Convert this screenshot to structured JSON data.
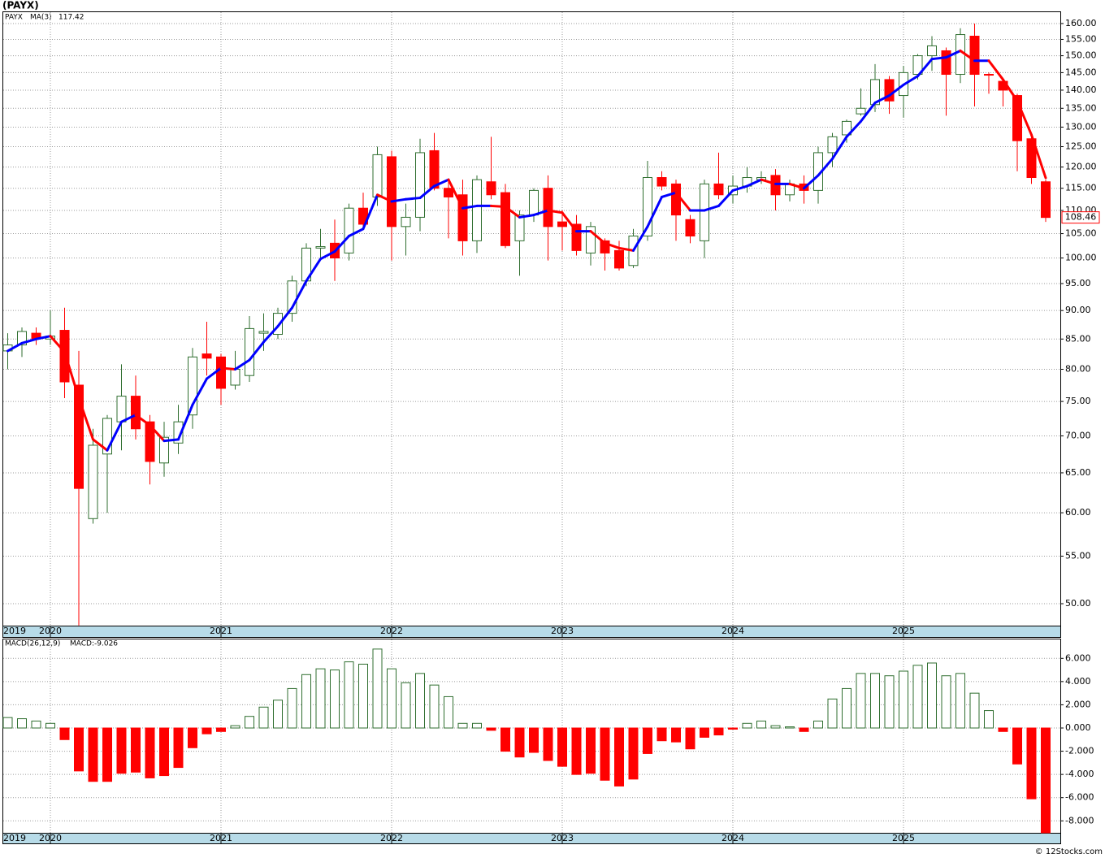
{
  "chart_data": [
    {
      "type": "candlestick",
      "title": "(PAYX)",
      "symbol": "PAYX",
      "log": true,
      "grid": true,
      "up_color": "#2f6e2f",
      "down_color": "#ff0000",
      "categories": [
        "2019",
        null,
        null,
        "2020",
        null,
        null,
        null,
        null,
        null,
        null,
        null,
        null,
        null,
        null,
        null,
        "2021",
        null,
        null,
        null,
        null,
        null,
        null,
        null,
        null,
        null,
        null,
        null,
        "2022",
        null,
        null,
        null,
        null,
        null,
        null,
        null,
        null,
        null,
        null,
        null,
        "2023",
        null,
        null,
        null,
        null,
        null,
        null,
        null,
        null,
        null,
        null,
        null,
        "2024",
        null,
        null,
        null,
        null,
        null,
        null,
        null,
        null,
        null,
        null,
        null,
        "2025",
        null,
        null,
        null,
        null,
        null,
        null,
        null,
        null,
        null,
        null
      ],
      "open": [
        83,
        84,
        86,
        85,
        86.5,
        77.5,
        59.3,
        67.5,
        72,
        75.8,
        72,
        66.3,
        69,
        73,
        82.5,
        82,
        77.5,
        79,
        86,
        85.8,
        89.5,
        95.5,
        102,
        103,
        101,
        110.5,
        113,
        122.5,
        106.5,
        108.5,
        124,
        115,
        113.5,
        103.5,
        116.5,
        114,
        103.5,
        109,
        115,
        107.5,
        107,
        101,
        103.5,
        101.5,
        98.5,
        104.5,
        117.5,
        116,
        108,
        103.5,
        116,
        113.5,
        115.5,
        117,
        118,
        113.5,
        116,
        114.5,
        123.5,
        128,
        133.5,
        136,
        143,
        138.5,
        144.5,
        150,
        151.5,
        144.5,
        156,
        144.5,
        142.5,
        138.5,
        127,
        116.5
      ],
      "high": [
        86,
        87,
        87,
        90,
        90.5,
        83,
        71,
        73,
        80.8,
        79,
        73,
        72,
        74.5,
        83.5,
        88,
        82.5,
        83,
        89,
        89.5,
        90.5,
        96.5,
        103,
        106,
        108,
        111.5,
        114,
        125,
        124,
        111.5,
        127,
        128.5,
        116.5,
        117,
        118,
        127.5,
        116,
        110,
        115,
        118,
        110,
        109,
        107.5,
        104,
        103.5,
        106,
        121.5,
        119,
        117,
        109,
        117,
        123.5,
        118,
        120,
        119,
        119.5,
        117,
        118,
        125,
        128.5,
        132,
        140.5,
        147.5,
        144,
        147,
        150.5,
        156,
        152.5,
        158.5,
        160,
        145,
        143.5,
        139,
        128.5,
        117
      ],
      "low": [
        80,
        82,
        84,
        84,
        75.5,
        47.87,
        58.7,
        60,
        68,
        69.5,
        63.5,
        64.5,
        67.5,
        71,
        79,
        74.5,
        76.8,
        78,
        83,
        85,
        88,
        94.5,
        100,
        95.5,
        99.5,
        106,
        111,
        99.5,
        100.5,
        105.5,
        114.5,
        104,
        100.5,
        101,
        112.5,
        102,
        96.5,
        107.5,
        99.5,
        101.5,
        100.5,
        98.5,
        97.5,
        97.5,
        98,
        103.5,
        114.5,
        103.5,
        103,
        100,
        112.5,
        111.5,
        114,
        116,
        110,
        112,
        111.5,
        111.5,
        120,
        126,
        133,
        134,
        133.5,
        132.5,
        143,
        145.5,
        133,
        142,
        135.5,
        139,
        135.5,
        119,
        116,
        107.5
      ],
      "close": [
        84,
        86.3,
        85,
        85.5,
        78,
        63,
        68.7,
        72.5,
        75.8,
        71,
        66.5,
        69.8,
        72,
        82,
        81.8,
        77,
        80,
        86.8,
        86.3,
        89.5,
        95.5,
        102,
        102.3,
        100,
        110.5,
        107,
        123,
        106.5,
        108.5,
        123.5,
        115,
        113,
        103.5,
        117,
        113.5,
        102.5,
        109,
        114.5,
        106.5,
        106.5,
        101.5,
        106.5,
        101,
        98,
        104.5,
        117.5,
        115.5,
        109,
        104.5,
        116,
        113.5,
        115.5,
        117.5,
        117.5,
        113.5,
        116,
        114.5,
        123.5,
        127.5,
        131.5,
        135,
        143,
        137,
        145,
        150,
        153,
        144.5,
        156.5,
        144.5,
        144.3,
        140,
        126.5,
        117.5,
        108.46
      ],
      "ma": {
        "name": "MA(3)",
        "up_color": "#0000ff",
        "down_color": "#ff0000",
        "values": [
          83,
          84.3,
          85,
          85.5,
          82.8,
          75.5,
          69.5,
          68,
          72,
          73,
          71.5,
          69.3,
          69.5,
          74.5,
          78.5,
          80.2,
          80,
          81.5,
          84.5,
          87.2,
          90.5,
          95.5,
          99.8,
          101.3,
          104.5,
          106,
          113.5,
          112,
          112.5,
          112.8,
          115.5,
          117,
          110.5,
          111,
          111,
          110.8,
          108.5,
          109,
          110,
          109.5,
          105.5,
          105.5,
          103,
          102,
          101.5,
          106.5,
          113,
          114,
          110,
          110,
          111,
          114.5,
          115.5,
          117,
          116,
          116,
          115,
          118,
          122,
          127.5,
          131.5,
          136.5,
          138.5,
          141.5,
          144,
          149,
          149.5,
          151.5,
          148.5,
          148.5,
          143,
          137,
          128,
          117.42
        ]
      },
      "ylim": [
        47.85,
        163.95
      ],
      "yticks": [
        {
          "value": 160,
          "label": "160.00"
        },
        {
          "value": 155,
          "label": "155.00"
        },
        {
          "value": 150,
          "label": "150.00"
        },
        {
          "value": 145,
          "label": "145.00"
        },
        {
          "value": 140,
          "label": "140.00"
        },
        {
          "value": 135,
          "label": "135.00"
        },
        {
          "value": 130,
          "label": "130.00"
        },
        {
          "value": 125,
          "label": "125.00"
        },
        {
          "value": 120,
          "label": "120.00"
        },
        {
          "value": 115,
          "label": "115.00"
        },
        {
          "value": 110,
          "label": "110.00"
        },
        {
          "value": 105,
          "label": "105.00"
        },
        {
          "value": 100,
          "label": "100.00"
        },
        {
          "value": 95,
          "label": "95.00"
        },
        {
          "value": 90,
          "label": "90.00"
        },
        {
          "value": 85,
          "label": "85.00"
        },
        {
          "value": 80,
          "label": "80.00"
        },
        {
          "value": 75,
          "label": "75.00"
        },
        {
          "value": 70,
          "label": "70.00"
        },
        {
          "value": 65,
          "label": "65.00"
        },
        {
          "value": 60,
          "label": "60.00"
        },
        {
          "value": 55,
          "label": "55.00"
        },
        {
          "value": 50,
          "label": "50.00"
        }
      ]
    },
    {
      "type": "bar",
      "legend": "MACD(26,12,9)",
      "legend_value": "MACD:-9.026",
      "grid": true,
      "up_color": "#2f6e2f",
      "down_color": "#ff0000",
      "categories": [
        "2019",
        null,
        null,
        "2020",
        null,
        null,
        null,
        null,
        null,
        null,
        null,
        null,
        null,
        null,
        null,
        "2021",
        null,
        null,
        null,
        null,
        null,
        null,
        null,
        null,
        null,
        null,
        null,
        "2022",
        null,
        null,
        null,
        null,
        null,
        null,
        null,
        null,
        null,
        null,
        null,
        "2023",
        null,
        null,
        null,
        null,
        null,
        null,
        null,
        null,
        null,
        null,
        null,
        "2024",
        null,
        null,
        null,
        null,
        null,
        null,
        null,
        null,
        null,
        null,
        null,
        "2025",
        null,
        null,
        null,
        null,
        null,
        null,
        null,
        null,
        null,
        null
      ],
      "values": [
        0.9,
        0.8,
        0.6,
        0.4,
        -1.0,
        -3.7,
        -4.6,
        -4.6,
        -3.9,
        -3.8,
        -4.3,
        -4.1,
        -3.4,
        -1.7,
        -0.5,
        -0.3,
        0.2,
        1.0,
        1.8,
        2.4,
        3.4,
        4.6,
        5.1,
        5.0,
        5.7,
        5.5,
        6.8,
        5.1,
        3.9,
        4.7,
        3.7,
        2.7,
        0.4,
        0.4,
        -0.2,
        -2.0,
        -2.5,
        -2.1,
        -2.8,
        -3.3,
        -4.0,
        -3.9,
        -4.5,
        -5.0,
        -4.4,
        -2.2,
        -1.1,
        -1.2,
        -1.8,
        -0.8,
        -0.6,
        -0.1,
        0.4,
        0.6,
        0.2,
        0.1,
        -0.3,
        0.6,
        2.5,
        3.4,
        4.7,
        4.7,
        4.5,
        4.9,
        5.4,
        5.6,
        4.5,
        4.7,
        3.0,
        1.5,
        -0.3,
        -3.1,
        -6.1,
        -9.026
      ],
      "ylim": [
        -9.03,
        7.7
      ],
      "yticks": [
        {
          "value": 6,
          "label": "6.000"
        },
        {
          "value": 4,
          "label": "4.000"
        },
        {
          "value": 2,
          "label": "2.000"
        },
        {
          "value": 0,
          "label": "0.000"
        },
        {
          "value": -2,
          "label": "-2.000"
        },
        {
          "value": -4,
          "label": "-4.000"
        },
        {
          "value": -6,
          "label": "-6.000"
        },
        {
          "value": -8,
          "label": "-8.000"
        }
      ]
    }
  ],
  "footer": "© 12Stocks.com"
}
